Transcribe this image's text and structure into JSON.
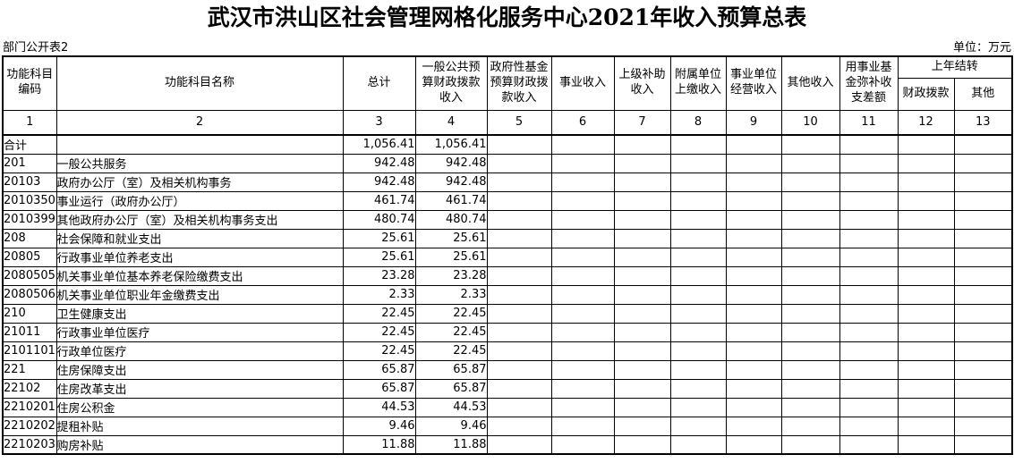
{
  "title": "武汉市洪山区社会管理网格化服务中心2021年收入预算总表",
  "meta": {
    "left_note": "部门公开表2",
    "unit_note": "单位：万元"
  },
  "table": {
    "header": {
      "carryover_group": "上年结转",
      "cols": [
        {
          "label": "功能科目\n编码",
          "num": "1"
        },
        {
          "label": "功能科目名称",
          "num": "2"
        },
        {
          "label": "总计",
          "num": "3"
        },
        {
          "label": "一般公共预\n算财政拨款\n收入",
          "num": "4"
        },
        {
          "label": "政府性基金\n预算财政拨\n款收入",
          "num": "5"
        },
        {
          "label": "事业收入",
          "num": "6"
        },
        {
          "label": "上级补助\n收入",
          "num": "7"
        },
        {
          "label": "附属单位\n上缴收入",
          "num": "8"
        },
        {
          "label": "事业单位\n经营收入",
          "num": "9"
        },
        {
          "label": "其他收入",
          "num": "10"
        },
        {
          "label": "用事业基\n金弥补收\n支差额",
          "num": "11"
        },
        {
          "label": "财政拨款",
          "num": "12"
        },
        {
          "label": "其他",
          "num": "13"
        }
      ]
    },
    "rows": [
      {
        "code": "合计",
        "name": "",
        "indent": 0,
        "total": "1,056.41",
        "general": "1,056.41"
      },
      {
        "code": "201",
        "name": "一般公共服务",
        "indent": 1,
        "total": "942.48",
        "general": "942.48"
      },
      {
        "code": "20103",
        "name": "政府办公厅（室）及相关机构事务",
        "indent": 2,
        "total": "942.48",
        "general": "942.48"
      },
      {
        "code": "2010350",
        "name": "事业运行（政府办公厅）",
        "indent": 3,
        "total": "461.74",
        "general": "461.74"
      },
      {
        "code": "2010399",
        "name": "其他政府办公厅（室）及相关机构事务支出",
        "indent": 3,
        "total": "480.74",
        "general": "480.74"
      },
      {
        "code": "208",
        "name": "社会保障和就业支出",
        "indent": 1,
        "total": "25.61",
        "general": "25.61"
      },
      {
        "code": "20805",
        "name": "行政事业单位养老支出",
        "indent": 2,
        "total": "25.61",
        "general": "25.61"
      },
      {
        "code": "2080505",
        "name": "机关事业单位基本养老保险缴费支出",
        "indent": 3,
        "total": "23.28",
        "general": "23.28"
      },
      {
        "code": "2080506",
        "name": "机关事业单位职业年金缴费支出",
        "indent": 3,
        "total": "2.33",
        "general": "2.33"
      },
      {
        "code": "210",
        "name": "卫生健康支出",
        "indent": 1,
        "total": "22.45",
        "general": "22.45"
      },
      {
        "code": "21011",
        "name": "行政事业单位医疗",
        "indent": 2,
        "total": "22.45",
        "general": "22.45"
      },
      {
        "code": "2101101",
        "name": "行政单位医疗",
        "indent": 3,
        "total": "22.45",
        "general": "22.45"
      },
      {
        "code": "221",
        "name": "住房保障支出",
        "indent": 1,
        "total": "65.87",
        "general": "65.87"
      },
      {
        "code": "22102",
        "name": "住房改革支出",
        "indent": 2,
        "total": "65.87",
        "general": "65.87"
      },
      {
        "code": "2210201",
        "name": "住房公积金",
        "indent": 3,
        "total": "44.53",
        "general": "44.53"
      },
      {
        "code": "2210202",
        "name": "提租补贴",
        "indent": 3,
        "total": "9.46",
        "general": "9.46"
      },
      {
        "code": "2210203",
        "name": "购房补贴",
        "indent": 3,
        "total": "11.88",
        "general": "11.88"
      }
    ]
  }
}
